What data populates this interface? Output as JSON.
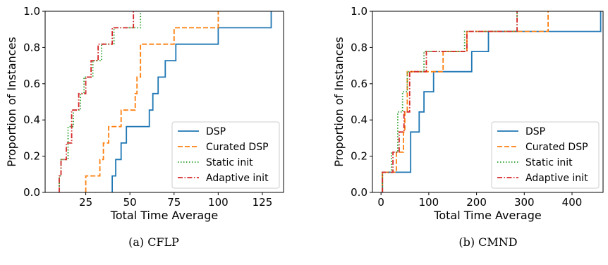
{
  "figure": {
    "panels": [
      {
        "caption": "(a) CFLP"
      },
      {
        "caption": "(b) CMND"
      }
    ]
  },
  "chart_data": [
    {
      "type": "line",
      "title": "",
      "xlabel": "Total Time Average",
      "ylabel": "Proportion of Instances",
      "xlim": [
        2,
        137
      ],
      "ylim": [
        0,
        1.0
      ],
      "xticks": [
        25,
        50,
        75,
        100,
        125
      ],
      "yticks": [
        0.0,
        0.2,
        0.4,
        0.6,
        0.8,
        1.0
      ],
      "xtick_labels": [
        "25",
        "50",
        "75",
        "100",
        "125"
      ],
      "ytick_labels": [
        "0.0",
        "0.2",
        "0.4",
        "0.6",
        "0.8",
        "1.0"
      ],
      "legend_position": "lower-right",
      "grid": false,
      "step": true,
      "series": [
        {
          "name": "DSP",
          "color": "#1f77b4",
          "dash": "solid",
          "x": [
            40,
            40.5,
            42,
            45,
            48,
            61,
            63,
            66,
            70,
            76,
            100,
            130
          ],
          "y": [
            0.0909,
            0.0909,
            0.1818,
            0.2727,
            0.3636,
            0.4545,
            0.5455,
            0.6364,
            0.7273,
            0.8182,
            0.9091,
            1.0
          ]
        },
        {
          "name": "Curated DSP",
          "color": "#ff7f0e",
          "dash": "7,3",
          "x": [
            25,
            28,
            33,
            35,
            38,
            45,
            46,
            53,
            54,
            56,
            75,
            100
          ],
          "y": [
            0.0909,
            0.0909,
            0.1818,
            0.2727,
            0.3636,
            0.4545,
            0.4545,
            0.5455,
            0.6364,
            0.8182,
            0.9091,
            1.0
          ]
        },
        {
          "name": "Static init",
          "color": "#2ca02c",
          "dash": "1.5,2.5",
          "x": [
            10,
            11,
            13,
            15,
            18,
            22,
            24,
            29,
            34,
            41,
            52,
            56
          ],
          "y": [
            0.0909,
            0.1818,
            0.1818,
            0.3636,
            0.4545,
            0.5455,
            0.6364,
            0.7273,
            0.8182,
            0.9091,
            0.9091,
            1.0
          ]
        },
        {
          "name": "Adaptive init",
          "color": "#d62728",
          "dash": "7,2.5,1.5,2.5",
          "x": [
            10,
            11,
            14,
            17,
            19,
            21,
            25,
            28,
            32,
            40,
            52
          ],
          "y": [
            0.0909,
            0.1818,
            0.2727,
            0.4545,
            0.4545,
            0.5455,
            0.6364,
            0.7273,
            0.8182,
            0.9091,
            1.0
          ]
        }
      ]
    },
    {
      "type": "line",
      "title": "",
      "xlabel": "Total Time Average",
      "ylabel": "Proportion of Instances",
      "xlim": [
        -18,
        465
      ],
      "ylim": [
        0,
        1.0
      ],
      "xticks": [
        0,
        100,
        200,
        300,
        400
      ],
      "yticks": [
        0.0,
        0.2,
        0.4,
        0.6,
        0.8,
        1.0
      ],
      "xtick_labels": [
        "0",
        "100",
        "200",
        "300",
        "400"
      ],
      "ytick_labels": [
        "0.0",
        "0.2",
        "0.4",
        "0.6",
        "0.8",
        "1.0"
      ],
      "legend_position": "lower-right",
      "grid": false,
      "step": true,
      "series": [
        {
          "name": "DSP",
          "color": "#1f77b4",
          "dash": "solid",
          "x": [
            3,
            62,
            80,
            90,
            110,
            190,
            225,
            460
          ],
          "y": [
            0.1111,
            0.3333,
            0.4444,
            0.5556,
            0.6667,
            0.7778,
            0.8889,
            1.0
          ]
        },
        {
          "name": "Curated DSP",
          "color": "#ff7f0e",
          "dash": "7,3",
          "x": [
            3,
            32,
            47,
            50,
            55,
            130,
            180,
            350
          ],
          "y": [
            0.1111,
            0.2222,
            0.3333,
            0.4444,
            0.6667,
            0.7778,
            0.8889,
            1.0
          ]
        },
        {
          "name": "Static init",
          "color": "#2ca02c",
          "dash": "1.5,2.5",
          "x": [
            3,
            22,
            35,
            45,
            55,
            90,
            175,
            285
          ],
          "y": [
            0.1111,
            0.2222,
            0.4444,
            0.5556,
            0.6667,
            0.7778,
            0.8889,
            1.0
          ]
        },
        {
          "name": "Adaptive init",
          "color": "#d62728",
          "dash": "7,2.5,1.5,2.5",
          "x": [
            3,
            25,
            38,
            48,
            60,
            95,
            180,
            285
          ],
          "y": [
            0.1111,
            0.2222,
            0.3333,
            0.4444,
            0.6667,
            0.7778,
            0.8889,
            1.0
          ]
        }
      ]
    }
  ]
}
